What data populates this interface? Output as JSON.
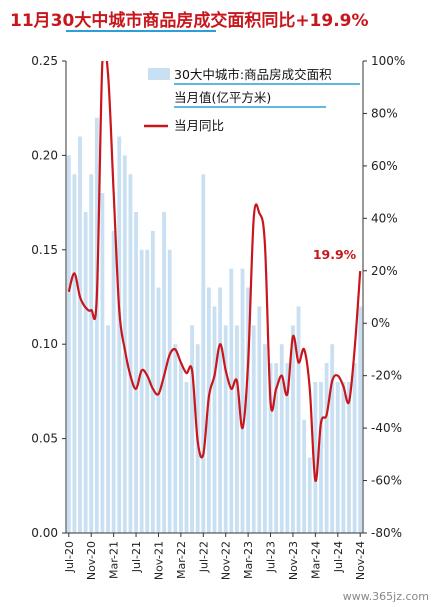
{
  "title": "11月30大中城市商品房成交面积同比+19.9%",
  "watermark": "www.365jz.com",
  "chart_data": {
    "type": "bar+line",
    "categories": [
      "Jul-20",
      "Aug-20",
      "Sep-20",
      "Oct-20",
      "Nov-20",
      "Dec-20",
      "Jan-21",
      "Feb-21",
      "Mar-21",
      "Apr-21",
      "May-21",
      "Jun-21",
      "Jul-21",
      "Aug-21",
      "Sep-21",
      "Oct-21",
      "Nov-21",
      "Dec-21",
      "Jan-22",
      "Feb-22",
      "Mar-22",
      "Apr-22",
      "May-22",
      "Jun-22",
      "Jul-22",
      "Aug-22",
      "Sep-22",
      "Oct-22",
      "Nov-22",
      "Dec-22",
      "Jan-23",
      "Feb-23",
      "Mar-23",
      "Apr-23",
      "May-23",
      "Jun-23",
      "Jul-23",
      "Aug-23",
      "Sep-23",
      "Oct-23",
      "Nov-23",
      "Dec-23",
      "Jan-24",
      "Feb-24",
      "Mar-24",
      "Apr-24",
      "May-24",
      "Jun-24",
      "Jul-24",
      "Aug-24",
      "Sep-24",
      "Oct-24",
      "Nov-24"
    ],
    "x_tick_labels": [
      "Jul-20",
      "Nov-20",
      "Mar-21",
      "Jul-21",
      "Nov-21",
      "Mar-22",
      "Jul-22",
      "Nov-22",
      "Mar-23",
      "Jul-23",
      "Nov-23",
      "Mar-24",
      "Jul-24",
      "Nov-24"
    ],
    "series": [
      {
        "name": "30大中城市:商品房成交面积当月值(亿平方米)",
        "type": "bar",
        "axis": "left",
        "color": "#c9dff2",
        "values": [
          0.2,
          0.19,
          0.21,
          0.17,
          0.19,
          0.22,
          0.18,
          0.11,
          0.16,
          0.21,
          0.2,
          0.19,
          0.17,
          0.15,
          0.15,
          0.16,
          0.13,
          0.17,
          0.15,
          0.1,
          0.09,
          0.08,
          0.11,
          0.1,
          0.19,
          0.13,
          0.12,
          0.13,
          0.11,
          0.14,
          0.11,
          0.14,
          0.13,
          0.11,
          0.12,
          0.1,
          0.09,
          0.09,
          0.1,
          0.09,
          0.11,
          0.12,
          0.06,
          0.04,
          0.08,
          0.08,
          0.09,
          0.1,
          0.08,
          0.08,
          0.08,
          0.09,
          0.12
        ]
      },
      {
        "name": "当月同比",
        "type": "line",
        "axis": "right",
        "color": "#c8161d",
        "values": [
          12,
          19,
          10,
          6,
          5,
          10,
          100,
          95,
          50,
          5,
          -10,
          -20,
          -25,
          -18,
          -20,
          -25,
          -27,
          -20,
          -12,
          -10,
          -15,
          -19,
          -18,
          -45,
          -50,
          -28,
          -20,
          -8,
          -18,
          -25,
          -22,
          -40,
          -15,
          40,
          42,
          30,
          -30,
          -25,
          -20,
          -27,
          -5,
          -15,
          -10,
          -25,
          -60,
          -38,
          -35,
          -22,
          -20,
          -24,
          -30,
          -10,
          19.9
        ]
      }
    ],
    "y_left": {
      "min": 0,
      "max": 0.25,
      "ticks": [
        "0.00",
        "0.05",
        "0.10",
        "0.15",
        "0.20",
        "0.25"
      ]
    },
    "y_right": {
      "min": -80,
      "max": 100,
      "ticks": [
        "-80%",
        "-60%",
        "-40%",
        "-20%",
        "0%",
        "20%",
        "40%",
        "60%",
        "80%",
        "100%"
      ]
    },
    "annotation": "19.9%",
    "legend": {
      "position": "top-right"
    },
    "grid": false
  }
}
